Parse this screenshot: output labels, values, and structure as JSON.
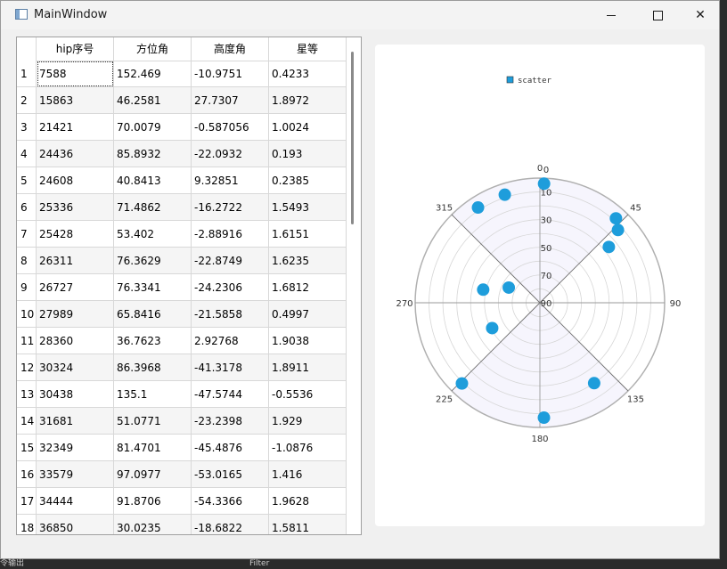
{
  "window": {
    "title": "MainWindow"
  },
  "table": {
    "headers": [
      "hip序号",
      "方位角",
      "高度角",
      "星等"
    ],
    "rows": [
      {
        "idx": "1",
        "hip": "7588",
        "az": "152.469",
        "alt": "-10.9751",
        "mag": "0.4233"
      },
      {
        "idx": "2",
        "hip": "15863",
        "az": "46.2581",
        "alt": "27.7307",
        "mag": "1.8972"
      },
      {
        "idx": "3",
        "hip": "21421",
        "az": "70.0079",
        "alt": "-0.587056",
        "mag": "1.0024"
      },
      {
        "idx": "4",
        "hip": "24436",
        "az": "85.8932",
        "alt": "-22.0932",
        "mag": "0.193"
      },
      {
        "idx": "5",
        "hip": "24608",
        "az": "40.8413",
        "alt": "9.32851",
        "mag": "0.2385"
      },
      {
        "idx": "6",
        "hip": "25336",
        "az": "71.4862",
        "alt": "-16.2722",
        "mag": "1.5493"
      },
      {
        "idx": "7",
        "hip": "25428",
        "az": "53.402",
        "alt": "-2.88916",
        "mag": "1.6151"
      },
      {
        "idx": "8",
        "hip": "26311",
        "az": "76.3629",
        "alt": "-22.8749",
        "mag": "1.6235"
      },
      {
        "idx": "9",
        "hip": "26727",
        "az": "76.3341",
        "alt": "-24.2306",
        "mag": "1.6812"
      },
      {
        "idx": "10",
        "hip": "27989",
        "az": "65.8416",
        "alt": "-21.5858",
        "mag": "0.4997"
      },
      {
        "idx": "11",
        "hip": "28360",
        "az": "36.7623",
        "alt": "2.92768",
        "mag": "1.9038"
      },
      {
        "idx": "12",
        "hip": "30324",
        "az": "86.3968",
        "alt": "-41.3178",
        "mag": "1.8911"
      },
      {
        "idx": "13",
        "hip": "30438",
        "az": "135.1",
        "alt": "-47.5744",
        "mag": "-0.5536"
      },
      {
        "idx": "14",
        "hip": "31681",
        "az": "51.0771",
        "alt": "-23.2398",
        "mag": "1.929"
      },
      {
        "idx": "15",
        "hip": "32349",
        "az": "81.4701",
        "alt": "-45.4876",
        "mag": "-1.0876"
      },
      {
        "idx": "16",
        "hip": "33579",
        "az": "97.0977",
        "alt": "-53.0165",
        "mag": "1.416"
      },
      {
        "idx": "17",
        "hip": "34444",
        "az": "91.8706",
        "alt": "-54.3366",
        "mag": "1.9628"
      },
      {
        "idx": "18",
        "hip": "36850",
        "az": "30.0235",
        "alt": "-18.6822",
        "mag": "1.5811"
      }
    ]
  },
  "chart_data": {
    "type": "scatter",
    "coordinate_system": "polar",
    "legend": [
      "scatter"
    ],
    "legend_position": "top",
    "angle_axis": {
      "min": 0,
      "max": 360,
      "labels": [
        "0",
        "45",
        "90",
        "135",
        "180",
        "225",
        "270",
        "315"
      ]
    },
    "radius_axis": {
      "min": 0,
      "max": 90,
      "inverse": true,
      "labels": [
        "0",
        "10",
        "30",
        "50",
        "70",
        "90"
      ]
    },
    "series": [
      {
        "name": "scatter",
        "color": "#1e9ddb",
        "points": [
          {
            "angle": 2,
            "radius": 4
          },
          {
            "angle": 342,
            "radius": 8
          },
          {
            "angle": 327,
            "radius": 8
          },
          {
            "angle": 42,
            "radius": 8
          },
          {
            "angle": 47,
            "radius": 13
          },
          {
            "angle": 51,
            "radius": 26
          },
          {
            "angle": 283,
            "radius": 48
          },
          {
            "angle": 296,
            "radius": 65
          },
          {
            "angle": 242,
            "radius": 51
          },
          {
            "angle": 224,
            "radius": 9
          },
          {
            "angle": 146,
            "radius": 20
          },
          {
            "angle": 178,
            "radius": 7
          }
        ]
      }
    ],
    "sector_fill": "#f6f5fd"
  },
  "status": {
    "left_text": "令输出",
    "filter_text": "Filter"
  }
}
